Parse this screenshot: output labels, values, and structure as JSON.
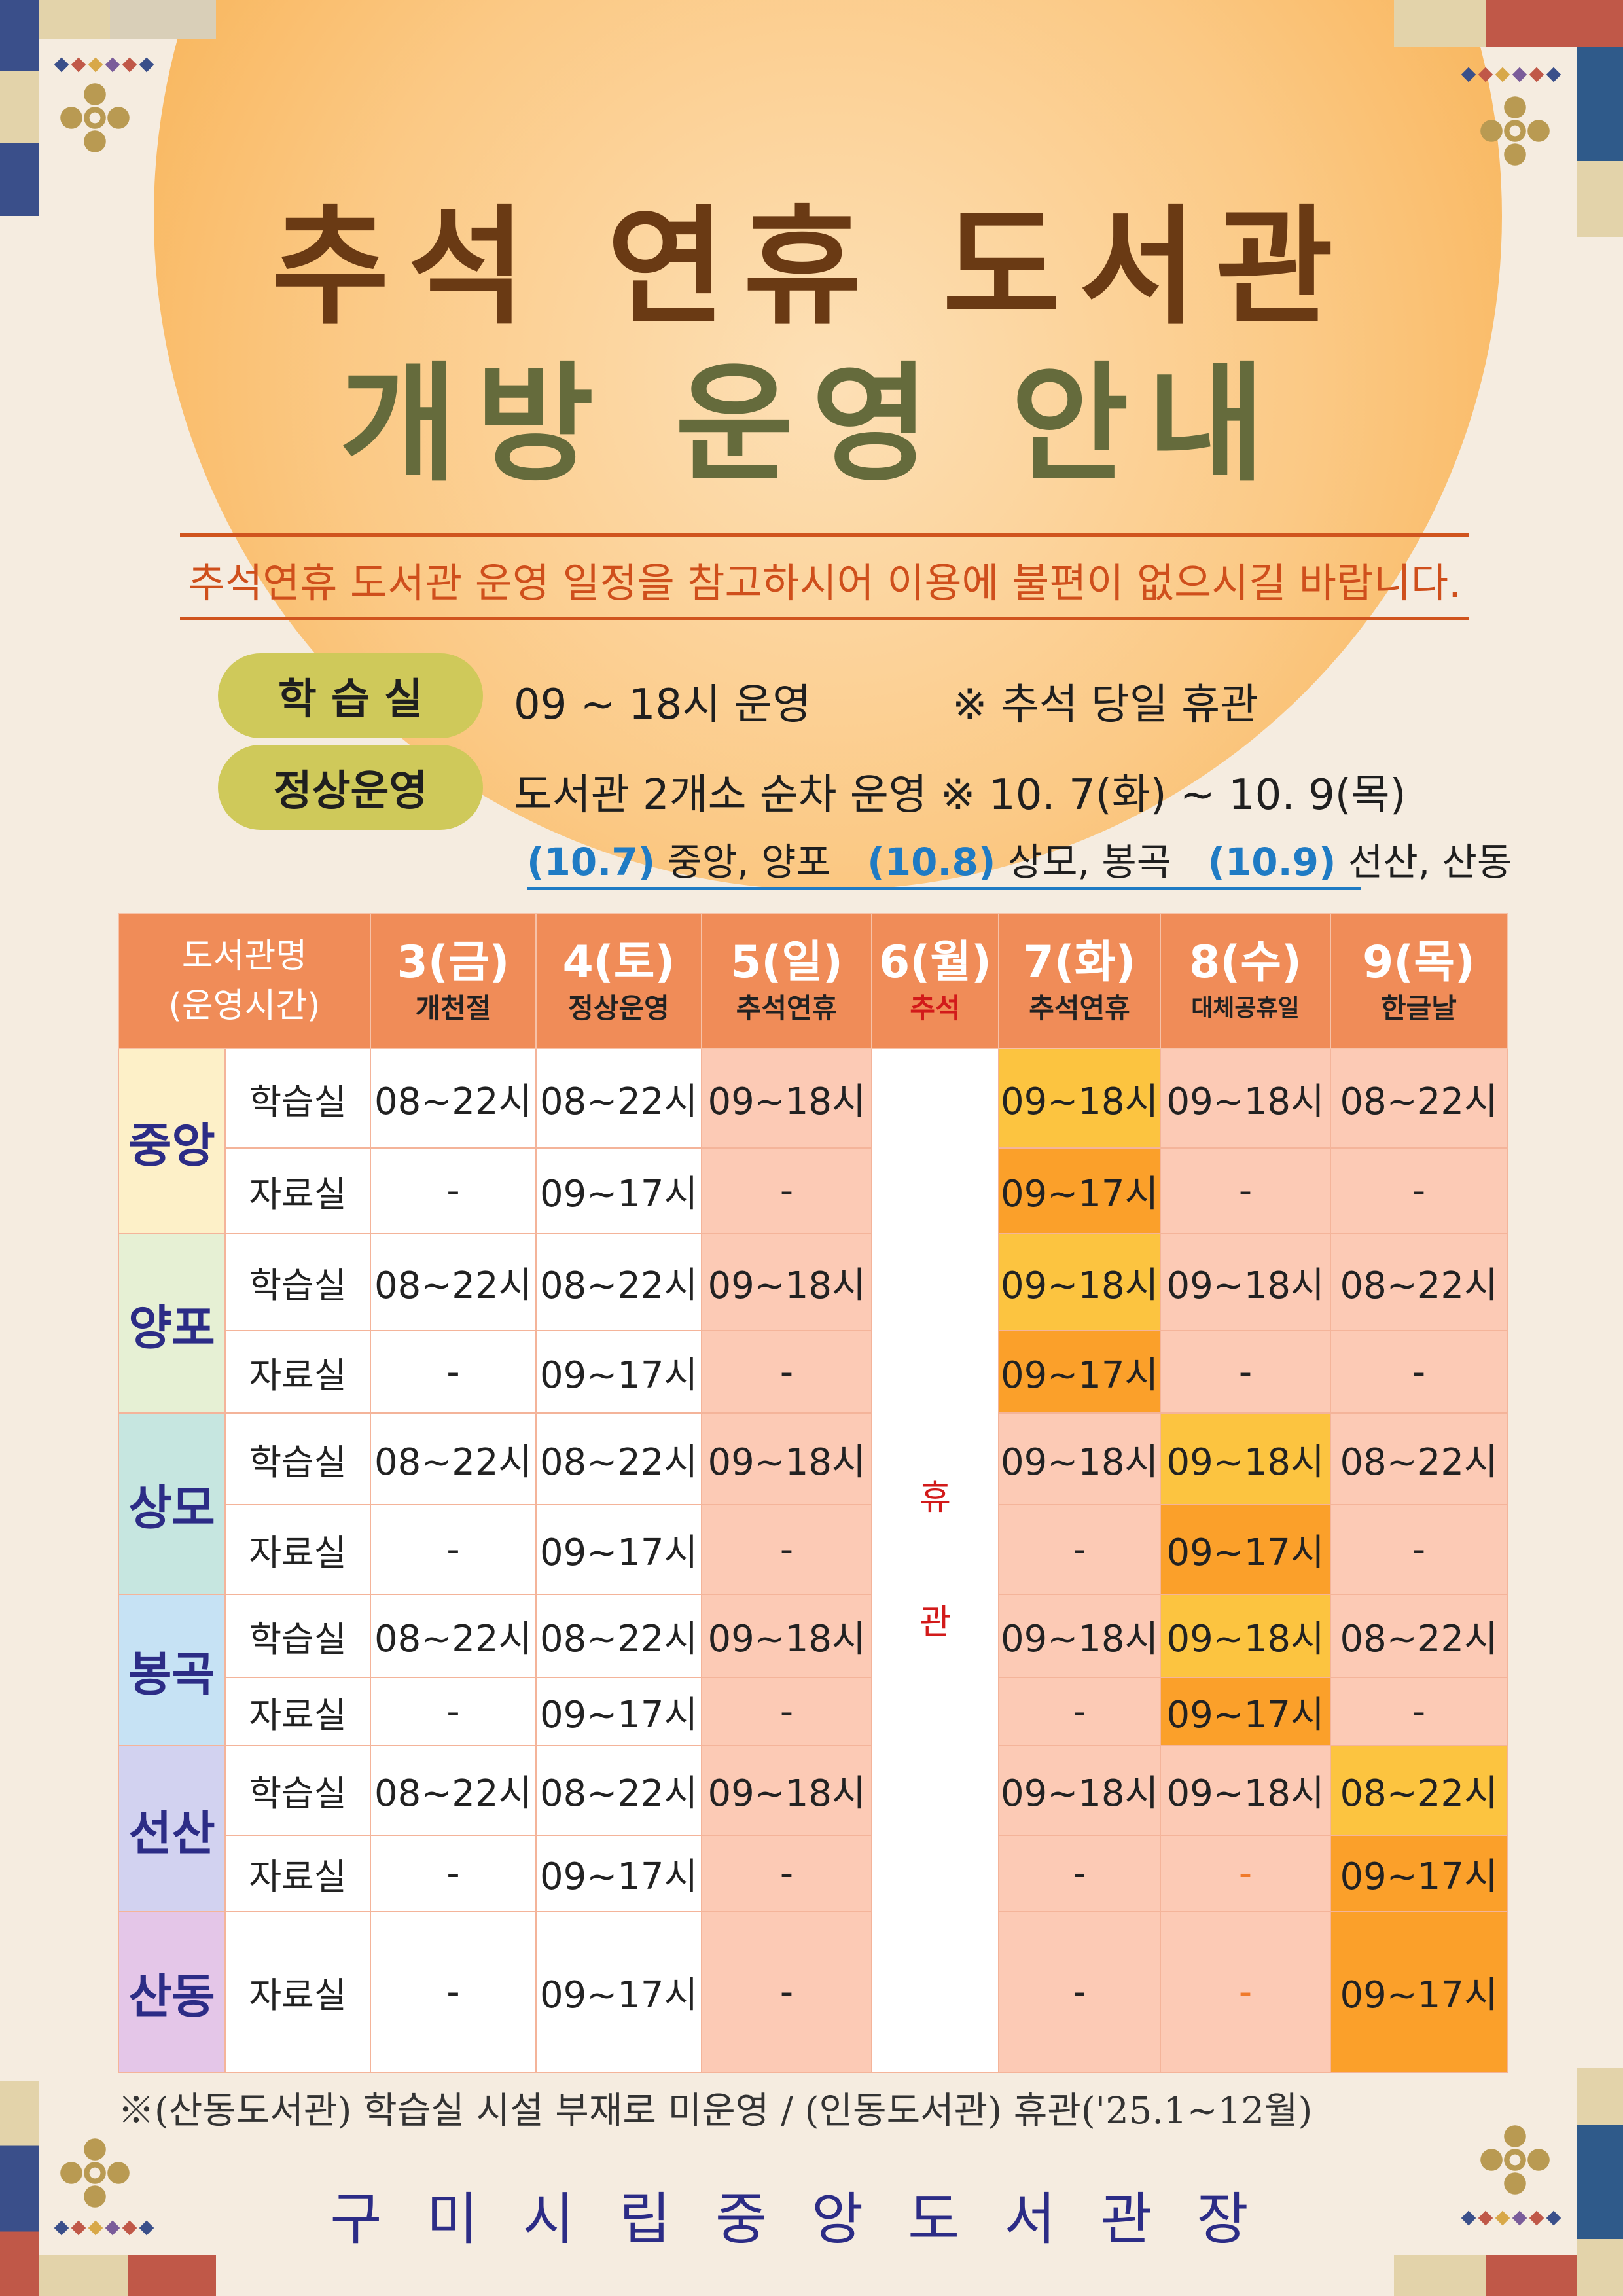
{
  "title": {
    "line1": "추석 연휴 도서관",
    "line2": "개방 운영 안내"
  },
  "subtitle": "추석연휴 도서관 운영 일정을 참고하시어 이용에 불편이 없으시길 바랍니다.",
  "info": [
    {
      "label": "학 습 실",
      "text": "09 ~ 18시 운영",
      "note": "※ 추석 당일 휴관"
    },
    {
      "label": "정상운영",
      "text": "도서관 2개소 순차 운영 ※ 10. 7(화) ~ 10. 9(목)"
    }
  ],
  "rotation": [
    {
      "date": "(10.7)",
      "libs": "중앙, 양포"
    },
    {
      "date": "(10.8)",
      "libs": "상모, 봉곡"
    },
    {
      "date": "(10.9)",
      "libs": "선산, 산동"
    }
  ],
  "table": {
    "corner": {
      "line1": "도서관명",
      "line2": "(운영시간)"
    },
    "days": [
      {
        "day": "3(금)",
        "sub": "개천절"
      },
      {
        "day": "4(토)",
        "sub": "정상운영"
      },
      {
        "day": "5(일)",
        "sub": "추석연휴"
      },
      {
        "day": "6(월)",
        "sub": "추석"
      },
      {
        "day": "7(화)",
        "sub": "추석연휴"
      },
      {
        "day": "8(수)",
        "sub": "대체공휴일"
      },
      {
        "day": "9(목)",
        "sub": "한글날"
      }
    ],
    "closed": {
      "char1": "휴",
      "char2": "관"
    },
    "libraries": [
      {
        "name": "중앙",
        "rows": [
          {
            "room": "학습실",
            "cells": [
              "08~22시",
              "08~22시",
              "09~18시",
              "09~18시",
              "09~18시",
              "08~22시"
            ]
          },
          {
            "room": "자료실",
            "cells": [
              "-",
              "09~17시",
              "-",
              "09~17시",
              "-",
              "-"
            ]
          }
        ]
      },
      {
        "name": "양포",
        "rows": [
          {
            "room": "학습실",
            "cells": [
              "08~22시",
              "08~22시",
              "09~18시",
              "09~18시",
              "09~18시",
              "08~22시"
            ]
          },
          {
            "room": "자료실",
            "cells": [
              "-",
              "09~17시",
              "-",
              "09~17시",
              "-",
              "-"
            ]
          }
        ]
      },
      {
        "name": "상모",
        "rows": [
          {
            "room": "학습실",
            "cells": [
              "08~22시",
              "08~22시",
              "09~18시",
              "09~18시",
              "09~18시",
              "08~22시"
            ]
          },
          {
            "room": "자료실",
            "cells": [
              "-",
              "09~17시",
              "-",
              "-",
              "09~17시",
              "-"
            ]
          }
        ]
      },
      {
        "name": "봉곡",
        "rows": [
          {
            "room": "학습실",
            "cells": [
              "08~22시",
              "08~22시",
              "09~18시",
              "09~18시",
              "09~18시",
              "08~22시"
            ]
          },
          {
            "room": "자료실",
            "cells": [
              "-",
              "09~17시",
              "-",
              "-",
              "09~17시",
              "-"
            ]
          }
        ]
      },
      {
        "name": "선산",
        "rows": [
          {
            "room": "학습실",
            "cells": [
              "08~22시",
              "08~22시",
              "09~18시",
              "09~18시",
              "09~18시",
              "08~22시"
            ]
          },
          {
            "room": "자료실",
            "cells": [
              "-",
              "09~17시",
              "-",
              "-",
              "-",
              "09~17시"
            ]
          }
        ]
      },
      {
        "name": "산동",
        "rows": [
          {
            "room": "자료실",
            "cells": [
              "-",
              "09~17시",
              "-",
              "-",
              "-",
              "09~17시"
            ]
          }
        ]
      }
    ]
  },
  "footnote": "※(산동도서관) 학습실 시설 부재로 미운영 / (인동도서관) 휴관('25.1~12월)",
  "organization": "구미시립중앙도서관장",
  "colors": {
    "background": "#f5ece0",
    "title_brown": "#6a3a14",
    "title_olive": "#656b3c",
    "accent_red": "#cf4f1c",
    "pill": "#cfc95a",
    "blue": "#1f7bc4",
    "header": "#f08c58",
    "pink": "#fccab5",
    "yellow": "#fcc440",
    "orange": "#fba02a",
    "navy": "#2c2c86"
  }
}
